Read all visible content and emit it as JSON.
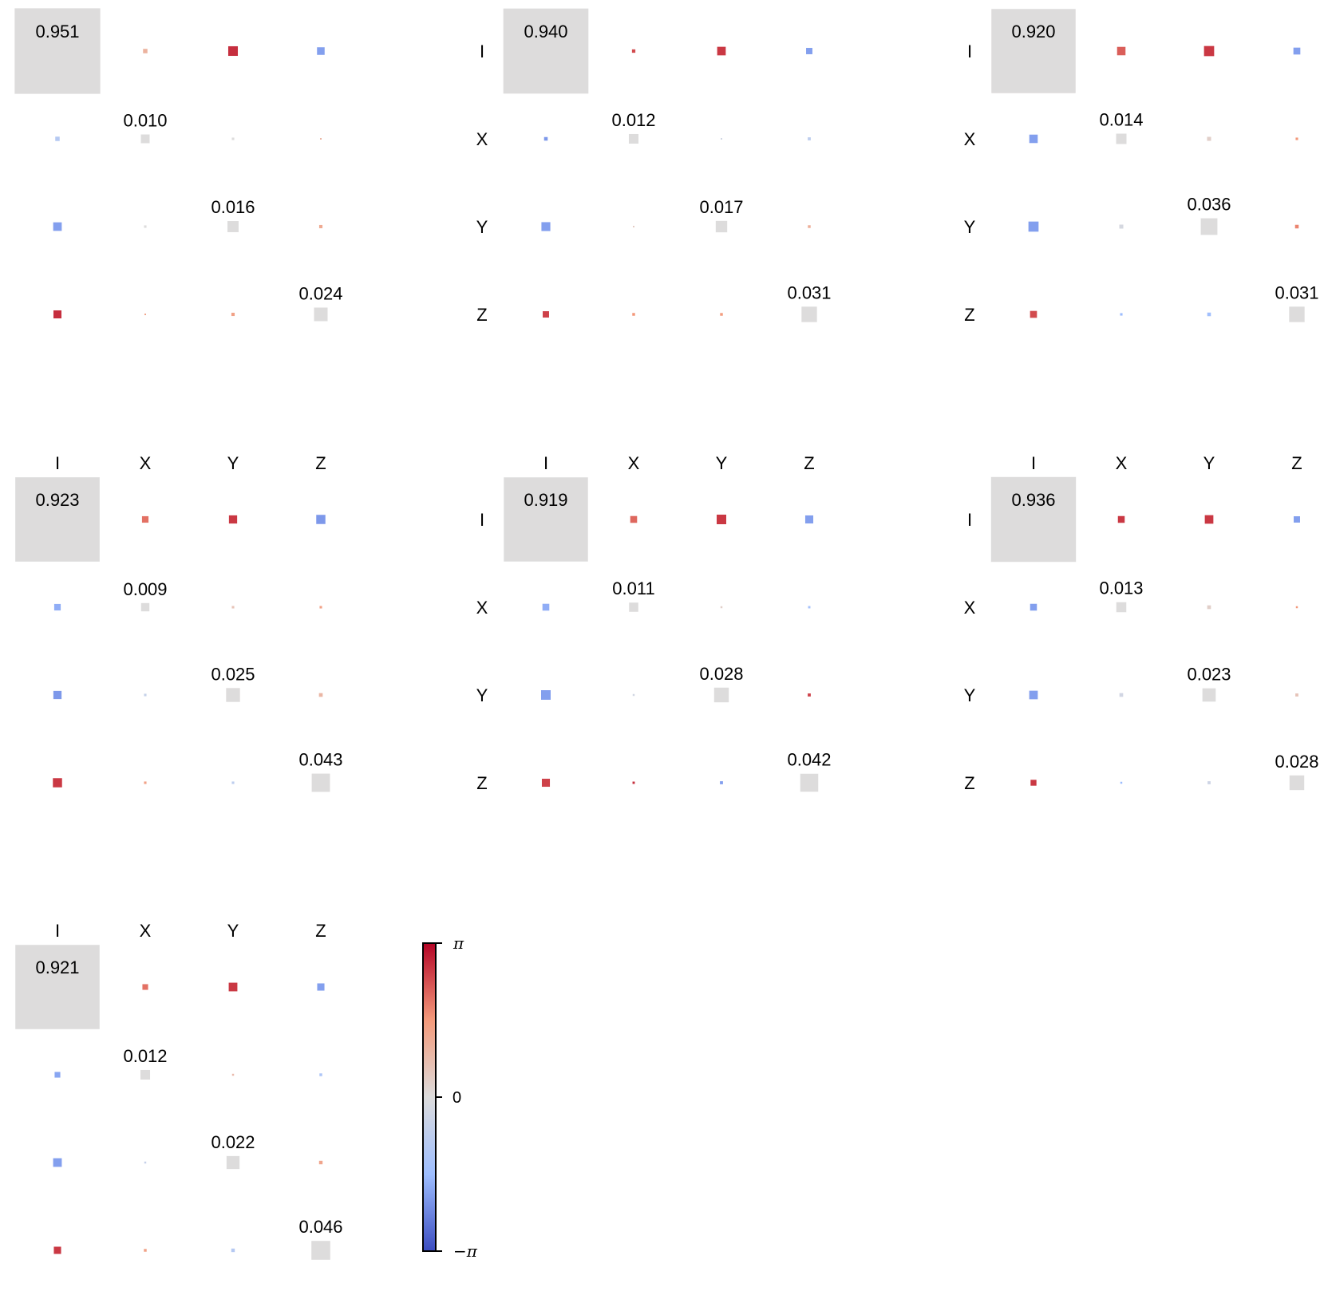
{
  "chart_data": [
    {
      "type": "heatmap",
      "title": "",
      "row_labels": [],
      "col_labels": [],
      "diagonal_values": [
        "0.951",
        "0.010",
        "0.016",
        "0.024"
      ],
      "magnitude": [
        [
          0.951,
          0.0025,
          0.012,
          0.0075
        ],
        [
          0.0025,
          0.01,
          0.0008,
          0.0003
        ],
        [
          0.0095,
          0.0008,
          0.016,
          0.0014
        ],
        [
          0.0083,
          0.0003,
          0.0014,
          0.024
        ]
      ],
      "phase": [
        [
          0,
          1.0,
          2.7,
          -2.0
        ],
        [
          -1.0,
          0,
          0,
          0.9
        ],
        [
          -2.0,
          0,
          0,
          1.2
        ],
        [
          2.7,
          1.3,
          1.4,
          0
        ]
      ]
    },
    {
      "type": "heatmap",
      "title": "",
      "row_labels": [
        "I",
        "X",
        "Y",
        "Z"
      ],
      "col_labels": [],
      "diagonal_values": [
        "0.940",
        "0.012",
        "0.017",
        "0.031"
      ],
      "magnitude": [
        [
          0.94,
          0.0015,
          0.0095,
          0.0052
        ],
        [
          0.0017,
          0.012,
          0.0003,
          0.0012
        ],
        [
          0.0103,
          0.0003,
          0.017,
          0.001
        ],
        [
          0.0052,
          0.001,
          0.001,
          0.031
        ]
      ],
      "phase": [
        [
          0,
          2.4,
          2.6,
          -2.0
        ],
        [
          -2.1,
          0,
          -0.3,
          -0.8
        ],
        [
          -2.0,
          0.4,
          0,
          1.1
        ],
        [
          2.5,
          1.6,
          1.5,
          0
        ]
      ]
    },
    {
      "type": "heatmap",
      "title": "",
      "row_labels": [
        "I",
        "X",
        "Y",
        "Z"
      ],
      "col_labels": [],
      "diagonal_values": [
        "0.920",
        "0.014",
        "0.036",
        "0.031"
      ],
      "magnitude": [
        [
          0.92,
          0.0092,
          0.0133,
          0.0062
        ],
        [
          0.0092,
          0.014,
          0.0021,
          0.0008
        ],
        [
          0.0133,
          0.0021,
          0.036,
          0.0017
        ],
        [
          0.0062,
          0.0008,
          0.0017,
          0.031
        ]
      ],
      "phase": [
        [
          0,
          2.2,
          2.6,
          -2.0
        ],
        [
          -2.0,
          0,
          0.3,
          1.6
        ],
        [
          -2.0,
          -0.2,
          0,
          1.8
        ],
        [
          2.4,
          -1.6,
          -1.5,
          0
        ]
      ]
    },
    {
      "type": "heatmap",
      "title": "",
      "row_labels": [],
      "col_labels": [
        "I",
        "X",
        "Y",
        "Z"
      ],
      "diagonal_values": [
        "0.923",
        "0.009",
        "0.025",
        "0.043"
      ],
      "magnitude": [
        [
          0.923,
          0.0055,
          0.0087,
          0.0109
        ],
        [
          0.0055,
          0.009,
          0.0008,
          0.0008
        ],
        [
          0.0087,
          0.0008,
          0.025,
          0.0018
        ],
        [
          0.0109,
          0.0008,
          0.0008,
          0.043
        ]
      ],
      "phase": [
        [
          0,
          2.0,
          2.6,
          -2.1
        ],
        [
          -1.8,
          0,
          0.6,
          1.4
        ],
        [
          -2.1,
          -0.6,
          0,
          0.9
        ],
        [
          2.6,
          1.4,
          -0.8,
          0
        ]
      ]
    },
    {
      "type": "heatmap",
      "title": "",
      "row_labels": [
        "I",
        "X",
        "Y",
        "Z"
      ],
      "col_labels": [
        "I",
        "X",
        "Y",
        "Z"
      ],
      "diagonal_values": [
        "0.919",
        "0.011",
        "0.028",
        "0.042"
      ],
      "magnitude": [
        [
          0.919,
          0.0061,
          0.0119,
          0.0084
        ],
        [
          0.0061,
          0.011,
          0.0005,
          0.0007
        ],
        [
          0.0119,
          0.0005,
          0.028,
          0.0012
        ],
        [
          0.0084,
          0.0007,
          0.0012,
          0.042
        ]
      ],
      "phase": [
        [
          0,
          2.1,
          2.6,
          -2.0
        ],
        [
          -1.8,
          0,
          0.3,
          -1.4
        ],
        [
          -2.0,
          -0.3,
          0,
          2.5
        ],
        [
          2.5,
          2.7,
          -2.0,
          0
        ]
      ]
    },
    {
      "type": "heatmap",
      "title": "",
      "row_labels": [
        "I",
        "X",
        "Y",
        "Z"
      ],
      "col_labels": [
        "I",
        "X",
        "Y",
        "Z"
      ],
      "diagonal_values": [
        "0.936",
        "0.013",
        "0.023",
        "0.028"
      ],
      "magnitude": [
        [
          0.936,
          0.006,
          0.0095,
          0.0052
        ],
        [
          0.006,
          0.013,
          0.0018,
          0.0005
        ],
        [
          0.0095,
          0.0018,
          0.023,
          0.0012
        ],
        [
          0.0045,
          0.0005,
          0.0012,
          0.028
        ]
      ],
      "phase": [
        [
          0,
          2.6,
          2.6,
          -2.0
        ],
        [
          -2.0,
          0,
          0.3,
          1.6
        ],
        [
          -2.0,
          -0.3,
          0,
          0.6
        ],
        [
          2.6,
          -1.6,
          -0.4,
          0
        ]
      ]
    },
    {
      "type": "heatmap",
      "title": "",
      "row_labels": [],
      "col_labels": [
        "I",
        "X",
        "Y",
        "Z"
      ],
      "diagonal_values": [
        "0.921",
        "0.012",
        "0.022",
        "0.046"
      ],
      "magnitude": [
        [
          0.921,
          0.0042,
          0.0097,
          0.0068
        ],
        [
          0.0042,
          0.012,
          0.0005,
          0.001
        ],
        [
          0.0097,
          0.0005,
          0.022,
          0.0016
        ],
        [
          0.0068,
          0.001,
          0.0016,
          0.046
        ]
      ],
      "phase": [
        [
          0,
          2.0,
          2.6,
          -2.0
        ],
        [
          -1.9,
          0,
          0.8,
          -1.2
        ],
        [
          -2.0,
          -0.6,
          0,
          1.3
        ],
        [
          2.6,
          1.4,
          -1.0,
          0
        ]
      ]
    }
  ],
  "colorbar": {
    "label_max": "π",
    "label_mid": "0",
    "label_min": "−π",
    "range": [
      -3.1416,
      3.1416
    ],
    "colors": {
      "max": "#b40426",
      "upper": "#f49a7b",
      "mid": "#dddcdc",
      "lower": "#9ebeff",
      "min": "#3b4cc0"
    }
  }
}
